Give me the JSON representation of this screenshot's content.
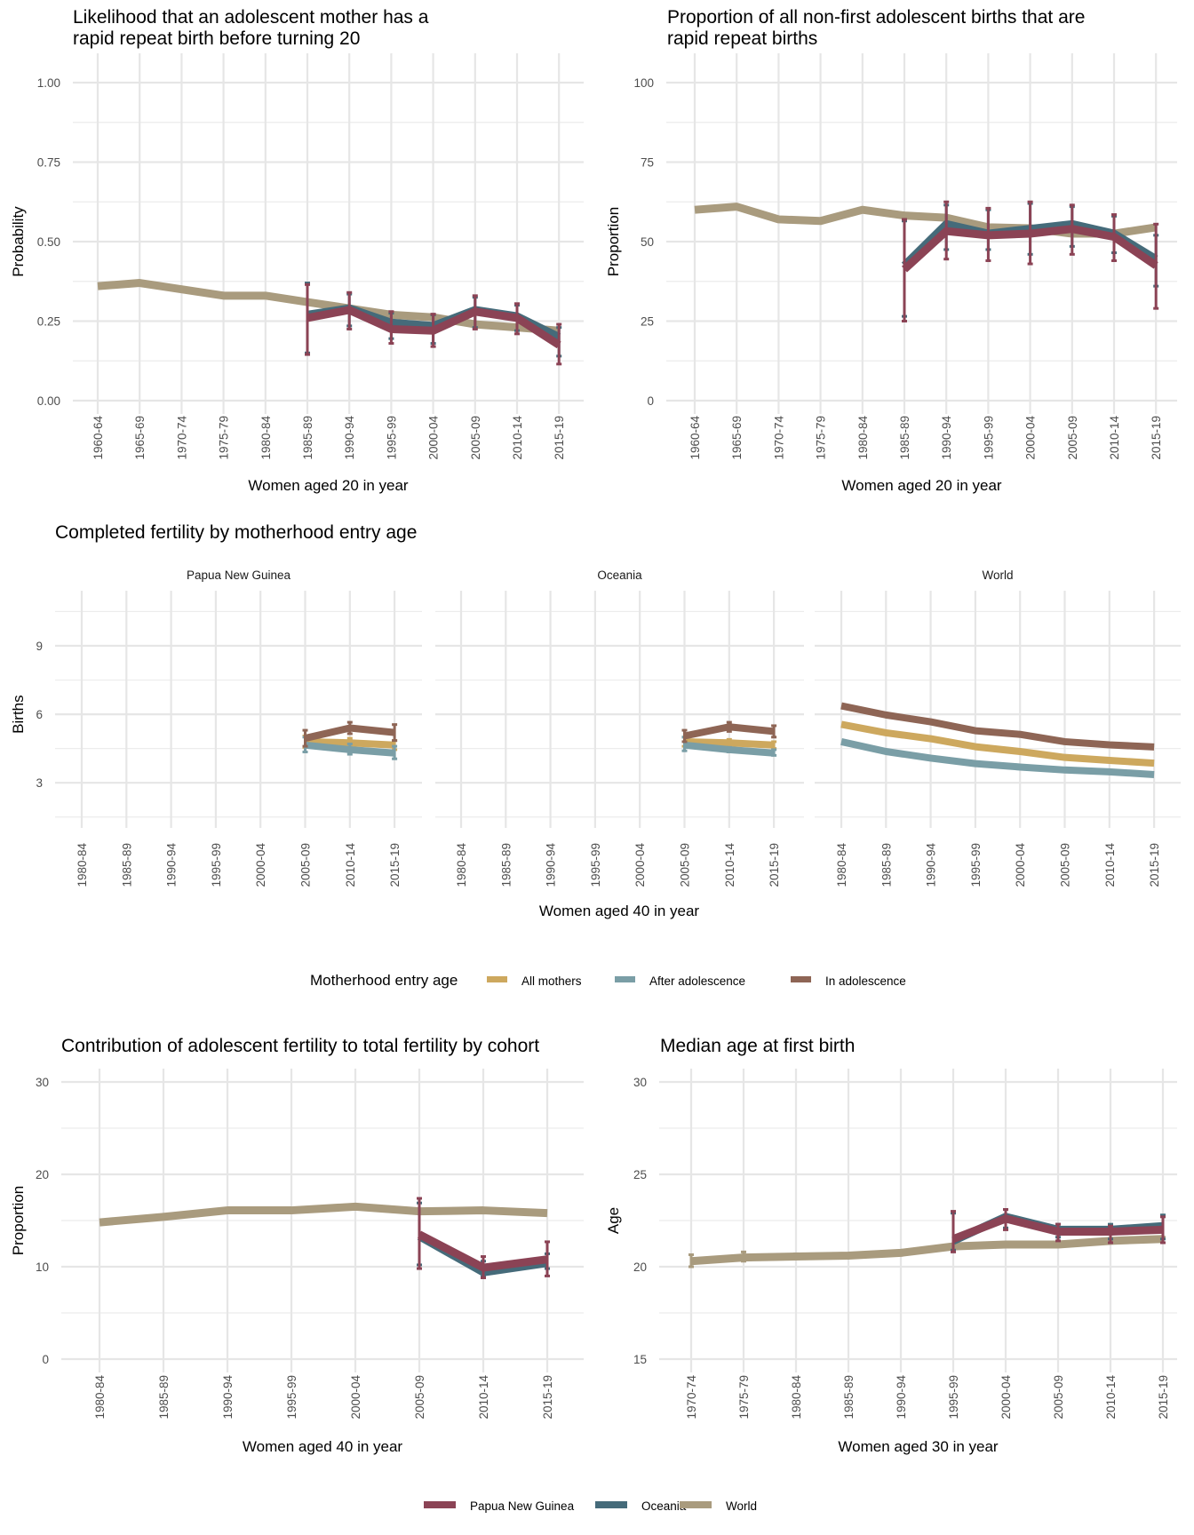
{
  "colors": {
    "png": "#8b4355",
    "oceania": "#456b7a",
    "world": "#a99b7e",
    "all_mothers": "#cda85e",
    "after_adolescence": "#7a9ea6",
    "in_adolescence": "#8e6555"
  },
  "legends": {
    "entry_age": {
      "title": "Motherhood entry age",
      "items": [
        {
          "label": "All mothers",
          "key": "all_mothers"
        },
        {
          "label": "After adolescence",
          "key": "after_adolescence"
        },
        {
          "label": "In adolescence",
          "key": "in_adolescence"
        }
      ]
    },
    "region": {
      "items": [
        {
          "label": "Papua New Guinea",
          "key": "png"
        },
        {
          "label": "Oceania",
          "key": "oceania"
        },
        {
          "label": "World",
          "key": "world"
        }
      ]
    }
  },
  "chart_data": [
    {
      "id": "rapid_repeat_likelihood",
      "type": "line",
      "title_lines": [
        "Likelihood that an adolescent mother has a",
        "rapid repeat birth before turning 20"
      ],
      "xlabel": "Women aged 20 in year",
      "ylabel": "Probability",
      "ylim": [
        0,
        1
      ],
      "yticks": [
        0,
        0.25,
        0.5,
        0.75,
        1
      ],
      "ytick_labels": [
        "0.00",
        "0.25",
        "0.50",
        "0.75",
        "1.00"
      ],
      "grid": true,
      "categories": [
        "1960-64",
        "1965-69",
        "1970-74",
        "1975-79",
        "1980-84",
        "1985-89",
        "1990-94",
        "1995-99",
        "2000-04",
        "2005-09",
        "2010-14",
        "2015-19"
      ],
      "series": [
        {
          "name": "World",
          "key": "world",
          "values": [
            0.36,
            0.37,
            0.35,
            0.33,
            0.33,
            0.31,
            0.29,
            0.27,
            0.262,
            0.24,
            0.23,
            0.22
          ]
        },
        {
          "name": "Oceania",
          "key": "oceania",
          "values": [
            null,
            null,
            null,
            null,
            null,
            0.27,
            0.29,
            0.245,
            0.235,
            0.285,
            0.265,
            0.2
          ],
          "lower": [
            null,
            null,
            null,
            null,
            null,
            0.15,
            0.235,
            0.195,
            0.18,
            0.23,
            0.22,
            0.14
          ],
          "upper": [
            null,
            null,
            null,
            null,
            null,
            0.37,
            0.335,
            0.275,
            0.27,
            0.325,
            0.3,
            0.23
          ]
        },
        {
          "name": "Papua New Guinea",
          "key": "png",
          "values": [
            null,
            null,
            null,
            null,
            null,
            0.26,
            0.285,
            0.225,
            0.22,
            0.28,
            0.26,
            0.175
          ],
          "lower": [
            null,
            null,
            null,
            null,
            null,
            0.145,
            0.225,
            0.18,
            0.17,
            0.225,
            0.21,
            0.115
          ],
          "upper": [
            null,
            null,
            null,
            null,
            null,
            0.365,
            0.34,
            0.28,
            0.272,
            0.33,
            0.305,
            0.24
          ]
        }
      ],
      "legend": "bottom"
    },
    {
      "id": "rapid_repeat_proportion",
      "type": "line",
      "title_lines": [
        "Proportion of all non-first adolescent births that are",
        "rapid repeat births"
      ],
      "xlabel": "Women aged 20 in year",
      "ylabel": "Proportion",
      "ylim": [
        0,
        100
      ],
      "yticks": [
        0,
        25,
        50,
        75,
        100
      ],
      "ytick_labels": [
        "0",
        "25",
        "50",
        "75",
        "100"
      ],
      "grid": true,
      "categories": [
        "1960-64",
        "1965-69",
        "1970-74",
        "1975-79",
        "1980-84",
        "1985-89",
        "1990-94",
        "1995-99",
        "2000-04",
        "2005-09",
        "2010-14",
        "2015-19"
      ],
      "series": [
        {
          "name": "World",
          "key": "world",
          "values": [
            60,
            61,
            57,
            56.5,
            60,
            58.2,
            57.5,
            54.5,
            54.2,
            52.5,
            52.5,
            54.5
          ]
        },
        {
          "name": "Oceania",
          "key": "oceania",
          "values": [
            null,
            null,
            null,
            null,
            null,
            42.5,
            55.5,
            52.5,
            54,
            55.5,
            52.5,
            44.5
          ],
          "lower": [
            null,
            null,
            null,
            null,
            null,
            26.5,
            47.5,
            47.5,
            46,
            48.5,
            46.5,
            36
          ],
          "upper": [
            null,
            null,
            null,
            null,
            null,
            56.5,
            61.5,
            60,
            62,
            61,
            58,
            52
          ]
        },
        {
          "name": "Papua New Guinea",
          "key": "png",
          "values": [
            null,
            null,
            null,
            null,
            null,
            41.3,
            53.3,
            52,
            52.5,
            54,
            51.5,
            42.5
          ],
          "lower": [
            null,
            null,
            null,
            null,
            null,
            25,
            44.5,
            44,
            43,
            46,
            44,
            29
          ],
          "upper": [
            null,
            null,
            null,
            null,
            null,
            57,
            62.5,
            60.5,
            62.5,
            61.5,
            58.5,
            55.5
          ]
        }
      ],
      "legend": "bottom"
    },
    {
      "id": "completed_fertility",
      "type": "line",
      "title": "Completed fertility by motherhood entry age",
      "xlabel": "Women aged 40 in year",
      "ylabel": "Births",
      "ylim": [
        0.9,
        11.3
      ],
      "yticks": [
        3,
        6,
        9
      ],
      "ytick_labels": [
        "3",
        "6",
        "9"
      ],
      "grid": true,
      "categories": [
        "1980-84",
        "1985-89",
        "1990-94",
        "1995-99",
        "2000-04",
        "2005-09",
        "2010-14",
        "2015-19"
      ],
      "facets": [
        {
          "label": "Papua New Guinea",
          "series": [
            {
              "name": "All mothers",
              "key": "all_mothers",
              "values": [
                null,
                null,
                null,
                null,
                null,
                4.8,
                4.75,
                4.65
              ],
              "lower": [
                null,
                null,
                null,
                null,
                null,
                4.55,
                4.55,
                4.45
              ],
              "upper": [
                null,
                null,
                null,
                null,
                null,
                5.05,
                4.95,
                4.85
              ]
            },
            {
              "name": "After adolescence",
              "key": "after_adolescence",
              "values": [
                null,
                null,
                null,
                null,
                null,
                4.65,
                4.45,
                4.3
              ],
              "lower": [
                null,
                null,
                null,
                null,
                null,
                4.35,
                4.25,
                4.05
              ],
              "upper": [
                null,
                null,
                null,
                null,
                null,
                5.0,
                4.7,
                4.6
              ]
            },
            {
              "name": "In adolescence",
              "key": "in_adolescence",
              "values": [
                null,
                null,
                null,
                null,
                null,
                4.95,
                5.4,
                5.2
              ],
              "lower": [
                null,
                null,
                null,
                null,
                null,
                4.6,
                5.15,
                4.85
              ],
              "upper": [
                null,
                null,
                null,
                null,
                null,
                5.3,
                5.65,
                5.55
              ]
            }
          ]
        },
        {
          "label": "Oceania",
          "series": [
            {
              "name": "All mothers",
              "key": "all_mothers",
              "values": [
                null,
                null,
                null,
                null,
                null,
                4.8,
                4.75,
                4.65
              ],
              "lower": [
                null,
                null,
                null,
                null,
                null,
                4.6,
                4.6,
                4.5
              ],
              "upper": [
                null,
                null,
                null,
                null,
                null,
                5.0,
                4.9,
                4.8
              ]
            },
            {
              "name": "After adolescence",
              "key": "after_adolescence",
              "values": [
                null,
                null,
                null,
                null,
                null,
                4.65,
                4.45,
                4.3
              ],
              "lower": [
                null,
                null,
                null,
                null,
                null,
                4.4,
                4.35,
                4.2
              ],
              "upper": [
                null,
                null,
                null,
                null,
                null,
                5.0,
                4.55,
                4.45
              ]
            },
            {
              "name": "In adolescence",
              "key": "in_adolescence",
              "values": [
                null,
                null,
                null,
                null,
                null,
                5.05,
                5.45,
                5.25
              ],
              "lower": [
                null,
                null,
                null,
                null,
                null,
                4.8,
                5.25,
                5.0
              ],
              "upper": [
                null,
                null,
                null,
                null,
                null,
                5.3,
                5.65,
                5.5
              ]
            }
          ]
        },
        {
          "label": "World",
          "series": [
            {
              "name": "All mothers",
              "key": "all_mothers",
              "values": [
                5.56,
                5.19,
                4.93,
                4.58,
                4.37,
                4.11,
                3.98,
                3.86
              ]
            },
            {
              "name": "After adolescence",
              "key": "after_adolescence",
              "values": [
                4.8,
                4.37,
                4.08,
                3.84,
                3.69,
                3.56,
                3.48,
                3.36
              ]
            },
            {
              "name": "In adolescence",
              "key": "in_adolescence",
              "values": [
                6.37,
                5.97,
                5.67,
                5.28,
                5.12,
                4.8,
                4.66,
                4.57
              ]
            }
          ]
        }
      ],
      "legend": "bottom"
    },
    {
      "id": "adolescent_contribution",
      "type": "line",
      "title": "Contribution of adolescent fertility to total fertility by cohort",
      "xlabel": "Women aged 40 in year",
      "ylabel": "Proportion",
      "ylim": [
        0,
        30
      ],
      "yticks": [
        0,
        10,
        20,
        30
      ],
      "ytick_labels": [
        "0",
        "10",
        "20",
        "30"
      ],
      "grid": true,
      "categories": [
        "1980-84",
        "1985-89",
        "1990-94",
        "1995-99",
        "2000-04",
        "2005-09",
        "2010-14",
        "2015-19"
      ],
      "series": [
        {
          "name": "World",
          "key": "world",
          "values": [
            14.8,
            15.4,
            16.1,
            16.1,
            16.5,
            16.0,
            16.1,
            15.8
          ]
        },
        {
          "name": "Oceania",
          "key": "oceania",
          "values": [
            null,
            null,
            null,
            null,
            null,
            13.3,
            9.4,
            10.4
          ],
          "lower": [
            null,
            null,
            null,
            null,
            null,
            10.2,
            8.9,
            9.8
          ],
          "upper": [
            null,
            null,
            null,
            null,
            null,
            16.9,
            10.6,
            11.4
          ]
        },
        {
          "name": "Papua New Guinea",
          "key": "png",
          "values": [
            null,
            null,
            null,
            null,
            null,
            13.5,
            9.9,
            10.8
          ],
          "lower": [
            null,
            null,
            null,
            null,
            null,
            9.8,
            8.8,
            9.0
          ],
          "upper": [
            null,
            null,
            null,
            null,
            null,
            17.4,
            11.1,
            12.7
          ]
        }
      ],
      "legend": "bottom"
    },
    {
      "id": "median_age_first_birth",
      "type": "line",
      "title": "Median age at first birth",
      "xlabel": "Women aged 30 in year",
      "ylabel": "Age",
      "ylim": [
        15,
        30
      ],
      "yticks": [
        15,
        20,
        25,
        30
      ],
      "ytick_labels": [
        "15",
        "20",
        "25",
        "30"
      ],
      "grid": true,
      "categories": [
        "1970-74",
        "1975-79",
        "1980-84",
        "1985-89",
        "1990-94",
        "1995-99",
        "2000-04",
        "2005-09",
        "2010-14",
        "2015-19"
      ],
      "series": [
        {
          "name": "World",
          "key": "world",
          "values": [
            20.3,
            20.5,
            20.55,
            20.6,
            20.75,
            21.1,
            21.2,
            21.2,
            21.4,
            21.5
          ],
          "lower": [
            20.0,
            20.3,
            20.45,
            20.5,
            20.65,
            21.0,
            21.1,
            21.1,
            21.3,
            21.3
          ],
          "upper": [
            20.65,
            20.8,
            20.7,
            20.7,
            20.85,
            21.2,
            21.3,
            21.3,
            21.5,
            21.6
          ]
        },
        {
          "name": "Oceania",
          "key": "oceania",
          "values": [
            null,
            null,
            null,
            null,
            null,
            21.4,
            22.7,
            22.0,
            22.0,
            22.2
          ],
          "lower": [
            null,
            null,
            null,
            null,
            null,
            20.9,
            22.1,
            21.6,
            21.5,
            21.5
          ],
          "upper": [
            null,
            null,
            null,
            null,
            null,
            22.9,
            23.1,
            22.3,
            22.3,
            22.8
          ]
        },
        {
          "name": "Papua New Guinea",
          "key": "png",
          "values": [
            null,
            null,
            null,
            null,
            null,
            21.5,
            22.6,
            21.9,
            21.9,
            22.0
          ],
          "lower": [
            null,
            null,
            null,
            null,
            null,
            20.8,
            22.0,
            21.4,
            21.3,
            21.3
          ],
          "upper": [
            null,
            null,
            null,
            null,
            null,
            23.0,
            23.1,
            22.3,
            22.2,
            22.7
          ]
        }
      ],
      "legend": "bottom"
    }
  ]
}
